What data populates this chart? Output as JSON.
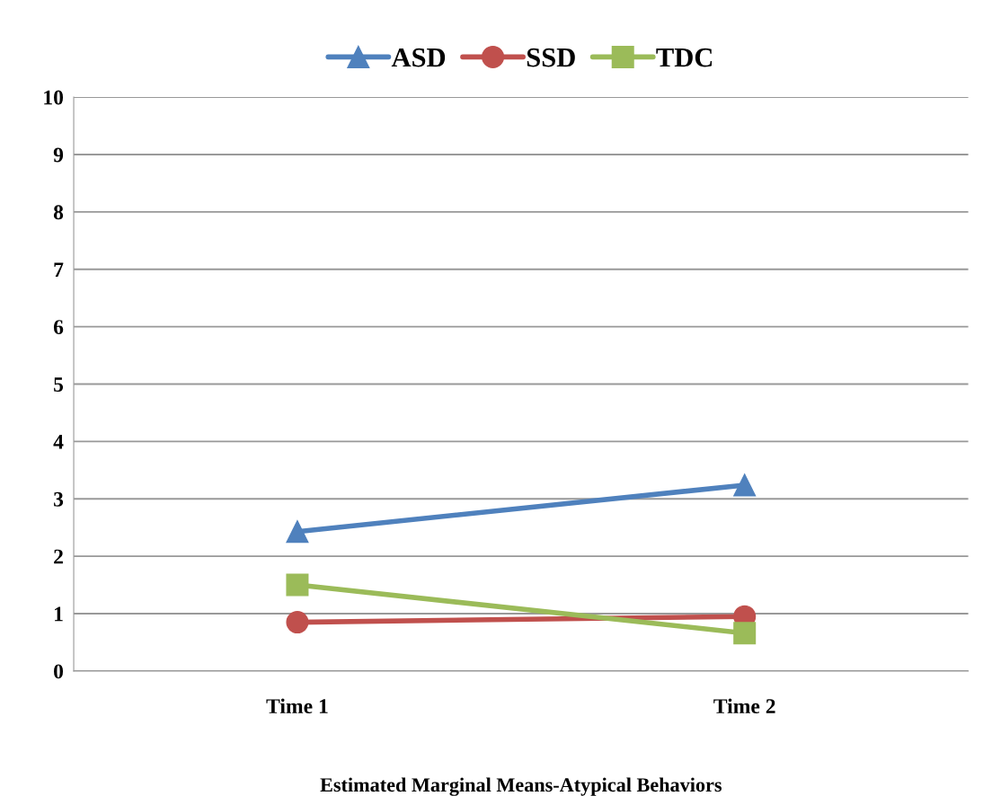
{
  "chart_data": {
    "type": "line",
    "xlabel": "Estimated Marginal Means-Atypical Behaviors",
    "categories": [
      "Time 1",
      "Time 2"
    ],
    "series": [
      {
        "name": "ASD",
        "color": "#4f81bd",
        "marker": "triangle",
        "values": [
          2.43,
          3.24
        ]
      },
      {
        "name": "SSD",
        "color": "#c0504d",
        "marker": "circle",
        "values": [
          0.85,
          0.95
        ]
      },
      {
        "name": "TDC",
        "color": "#9bbb59",
        "marker": "square",
        "values": [
          1.5,
          0.66
        ]
      }
    ],
    "ylim": [
      0,
      10
    ],
    "yticks": [
      0,
      1,
      2,
      3,
      4,
      5,
      6,
      7,
      8,
      9,
      10
    ],
    "grid": "y",
    "legend": "top",
    "line_style": "solid"
  }
}
